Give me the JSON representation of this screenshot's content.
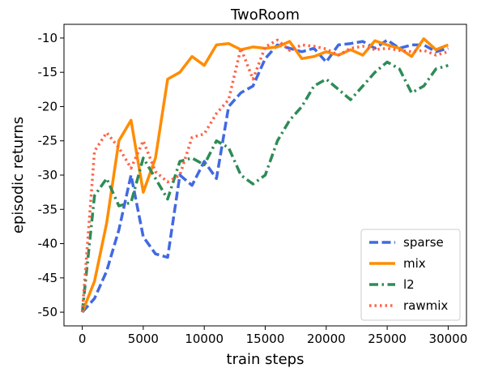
{
  "chart_data": {
    "type": "line",
    "title": "TwoRoom",
    "xlabel": "train steps",
    "ylabel": "episodic returns",
    "xlim": [
      -1500,
      31500
    ],
    "ylim": [
      -52,
      -8
    ],
    "xticks": [
      0,
      5000,
      10000,
      15000,
      20000,
      25000,
      30000
    ],
    "xtick_labels": [
      "0",
      "5000",
      "10000",
      "15000",
      "20000",
      "25000",
      "30000"
    ],
    "yticks": [
      -50,
      -45,
      -40,
      -35,
      -30,
      -25,
      -20,
      -15,
      -10
    ],
    "ytick_labels": [
      "-50",
      "-45",
      "-40",
      "-35",
      "-30",
      "-25",
      "-20",
      "-15",
      "-10"
    ],
    "grid": false,
    "legend_position": "lower-right",
    "x": [
      0,
      1000,
      2000,
      3000,
      4000,
      5000,
      6000,
      7000,
      8000,
      9000,
      10000,
      11000,
      12000,
      13000,
      14000,
      15000,
      16000,
      17000,
      18000,
      19000,
      20000,
      21000,
      22000,
      23000,
      24000,
      25000,
      26000,
      27000,
      28000,
      29000,
      30000
    ],
    "series": [
      {
        "name": "sparse",
        "color": "#4169e1",
        "style": "dashed",
        "values": [
          -50,
          -48,
          -44,
          -38,
          -30,
          -39,
          -41.5,
          -42,
          -30,
          -31.5,
          -28,
          -30.5,
          -20,
          -18,
          -17,
          -13,
          -11,
          -11.5,
          -12,
          -11.5,
          -13.5,
          -11,
          -10.8,
          -10.5,
          -11.5,
          -10.3,
          -11.5,
          -11,
          -11,
          -12,
          -11.5
        ]
      },
      {
        "name": "mix",
        "color": "#ff8c00",
        "style": "solid",
        "values": [
          -50,
          -45.5,
          -37,
          -25,
          -22,
          -32.5,
          -27.5,
          -16,
          -15,
          -12.7,
          -14,
          -11,
          -10.8,
          -11.7,
          -11.3,
          -11.5,
          -11.3,
          -10.5,
          -13,
          -12.7,
          -12,
          -12.5,
          -11.7,
          -12.5,
          -10.4,
          -11,
          -11.5,
          -12.7,
          -10.1,
          -11.7,
          -11
        ]
      },
      {
        "name": "l2",
        "color": "#2e8b57",
        "style": "dashdot",
        "values": [
          -50,
          -33,
          -30.5,
          -34.5,
          -34,
          -27.5,
          -30.5,
          -33.5,
          -28,
          -27.5,
          -28.5,
          -25,
          -26,
          -30,
          -31.3,
          -30,
          -25,
          -22,
          -20,
          -17,
          -16,
          -17.5,
          -19,
          -17,
          -15,
          -13.5,
          -14.5,
          -18,
          -17,
          -14.5,
          -14
        ]
      },
      {
        "name": "rawmix",
        "color": "#ff6347",
        "style": "dotted",
        "values": [
          -50,
          -26.5,
          -23.8,
          -26,
          -29,
          -25,
          -29.5,
          -31,
          -30,
          -24.5,
          -24,
          -21,
          -19,
          -11.5,
          -16,
          -11.3,
          -10.3,
          -11.8,
          -11,
          -11.2,
          -11.6,
          -12.5,
          -11.5,
          -11.2,
          -11.7,
          -11.5,
          -11.8,
          -12,
          -11.8,
          -12.5,
          -12
        ]
      }
    ]
  }
}
